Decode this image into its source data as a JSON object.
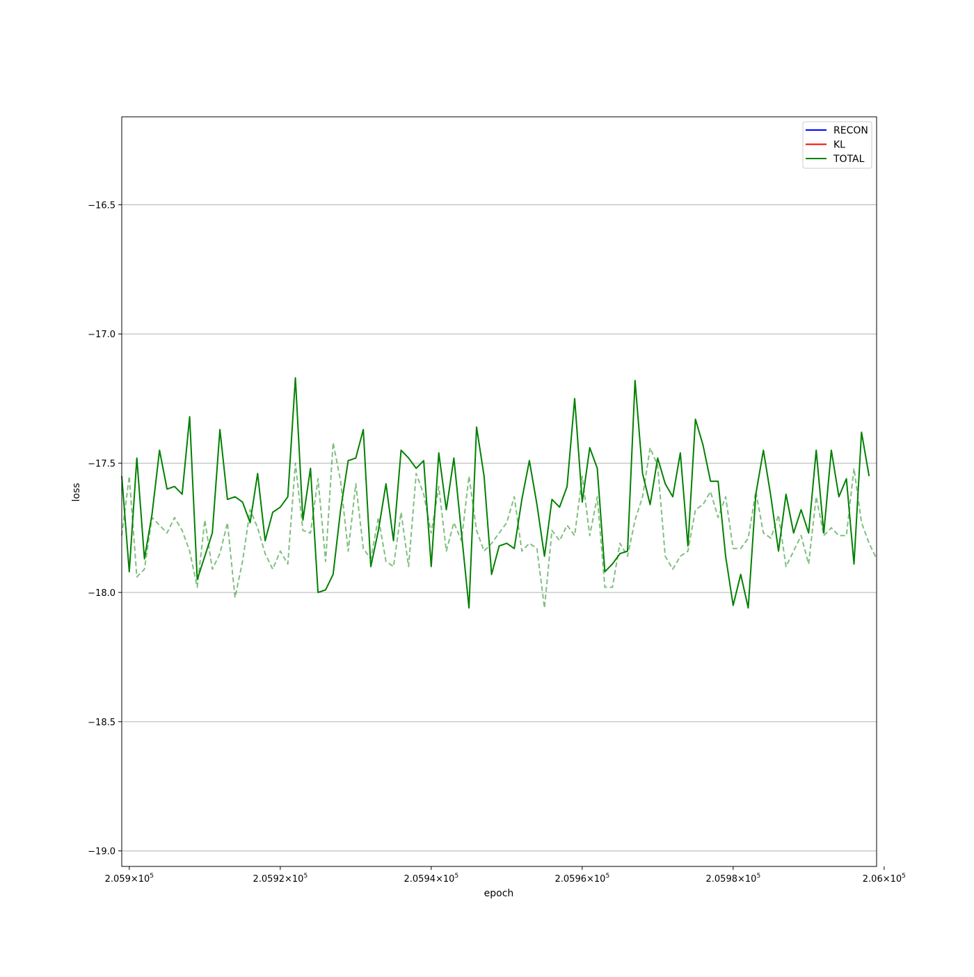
{
  "chart_data": {
    "type": "line",
    "title": "",
    "xlabel": "epoch",
    "ylabel": "loss",
    "xlim": [
      205899,
      205999
    ],
    "ylim": [
      -19.06,
      -16.16
    ],
    "grid": {
      "x": false,
      "y": true
    },
    "legend": {
      "placement": "top-right",
      "entries": [
        "RECON",
        "KL",
        "TOTAL"
      ]
    },
    "x_ticks": [
      {
        "value": 205900,
        "mantissa": "2.059",
        "exponent": "5"
      },
      {
        "value": 205920,
        "mantissa": "2.0592",
        "exponent": "5"
      },
      {
        "value": 205940,
        "mantissa": "2.0594",
        "exponent": "5"
      },
      {
        "value": 205960,
        "mantissa": "2.0596",
        "exponent": "5"
      },
      {
        "value": 205980,
        "mantissa": "2.0598",
        "exponent": "5"
      },
      {
        "value": 206000,
        "mantissa": "2.06",
        "exponent": "5"
      }
    ],
    "y_ticks": [
      {
        "value": -16.5,
        "label": "−16.5"
      },
      {
        "value": -17.0,
        "label": "−17.0"
      },
      {
        "value": -17.5,
        "label": "−17.5"
      },
      {
        "value": -18.0,
        "label": "−18.0"
      },
      {
        "value": -18.5,
        "label": "−18.5"
      },
      {
        "value": -19.0,
        "label": "−19.0"
      }
    ],
    "x_start": 205899,
    "x_step": 1,
    "series": [
      {
        "name": "RECON",
        "color": "#0000ff",
        "style": "solid",
        "values": []
      },
      {
        "name": "KL",
        "color": "#ff0000",
        "style": "solid",
        "values": []
      },
      {
        "name": "TOTAL",
        "color": "#008000",
        "style": "solid",
        "values": [
          -17.55,
          -17.92,
          -17.48,
          -17.87,
          -17.7,
          -17.45,
          -17.6,
          -17.59,
          -17.62,
          -17.32,
          -17.95,
          -17.86,
          -17.77,
          -17.37,
          -17.64,
          -17.63,
          -17.65,
          -17.73,
          -17.54,
          -17.8,
          -17.69,
          -17.67,
          -17.63,
          -17.17,
          -17.72,
          -17.52,
          -18.0,
          -17.99,
          -17.93,
          -17.68,
          -17.49,
          -17.48,
          -17.37,
          -17.9,
          -17.76,
          -17.58,
          -17.8,
          -17.45,
          -17.48,
          -17.52,
          -17.49,
          -17.9,
          -17.46,
          -17.68,
          -17.48,
          -17.77,
          -18.06,
          -17.36,
          -17.55,
          -17.93,
          -17.82,
          -17.81,
          -17.83,
          -17.64,
          -17.49,
          -17.66,
          -17.86,
          -17.64,
          -17.67,
          -17.59,
          -17.25,
          -17.65,
          -17.44,
          -17.52,
          -17.92,
          -17.89,
          -17.85,
          -17.84,
          -17.18,
          -17.54,
          -17.66,
          -17.48,
          -17.58,
          -17.63,
          -17.46,
          -17.82,
          -17.33,
          -17.43,
          -17.57,
          -17.57,
          -17.86,
          -18.05,
          -17.93,
          -18.06,
          -17.62,
          -17.45,
          -17.63,
          -17.84,
          -17.62,
          -17.77,
          -17.68,
          -17.77,
          -17.45,
          -17.77,
          -17.45,
          -17.63,
          -17.56,
          -17.89,
          -17.38,
          -17.55
        ]
      },
      {
        "name": "",
        "color": "#008000",
        "style": "dashed",
        "opacity": 0.5,
        "values": [
          -17.78,
          -17.55,
          -17.94,
          -17.91,
          -17.71,
          -17.74,
          -17.77,
          -17.71,
          -17.76,
          -17.84,
          -17.98,
          -17.72,
          -17.91,
          -17.85,
          -17.73,
          -18.02,
          -17.88,
          -17.68,
          -17.75,
          -17.85,
          -17.91,
          -17.84,
          -17.89,
          -17.5,
          -17.76,
          -17.77,
          -17.56,
          -17.88,
          -17.42,
          -17.57,
          -17.84,
          -17.58,
          -17.83,
          -17.87,
          -17.71,
          -17.88,
          -17.9,
          -17.69,
          -17.9,
          -17.54,
          -17.62,
          -17.77,
          -17.59,
          -17.84,
          -17.73,
          -17.8,
          -17.55,
          -17.76,
          -17.84,
          -17.81,
          -17.77,
          -17.73,
          -17.63,
          -17.84,
          -17.81,
          -17.83,
          -18.06,
          -17.76,
          -17.8,
          -17.74,
          -17.78,
          -17.55,
          -17.78,
          -17.63,
          -17.98,
          -17.98,
          -17.81,
          -17.86,
          -17.72,
          -17.63,
          -17.44,
          -17.51,
          -17.86,
          -17.91,
          -17.86,
          -17.84,
          -17.68,
          -17.66,
          -17.61,
          -17.71,
          -17.63,
          -17.83,
          -17.83,
          -17.79,
          -17.61,
          -17.77,
          -17.79,
          -17.7,
          -17.9,
          -17.84,
          -17.78,
          -17.89,
          -17.63,
          -17.78,
          -17.75,
          -17.78,
          -17.78,
          -17.52,
          -17.73,
          -17.81,
          -17.87
        ]
      }
    ]
  }
}
